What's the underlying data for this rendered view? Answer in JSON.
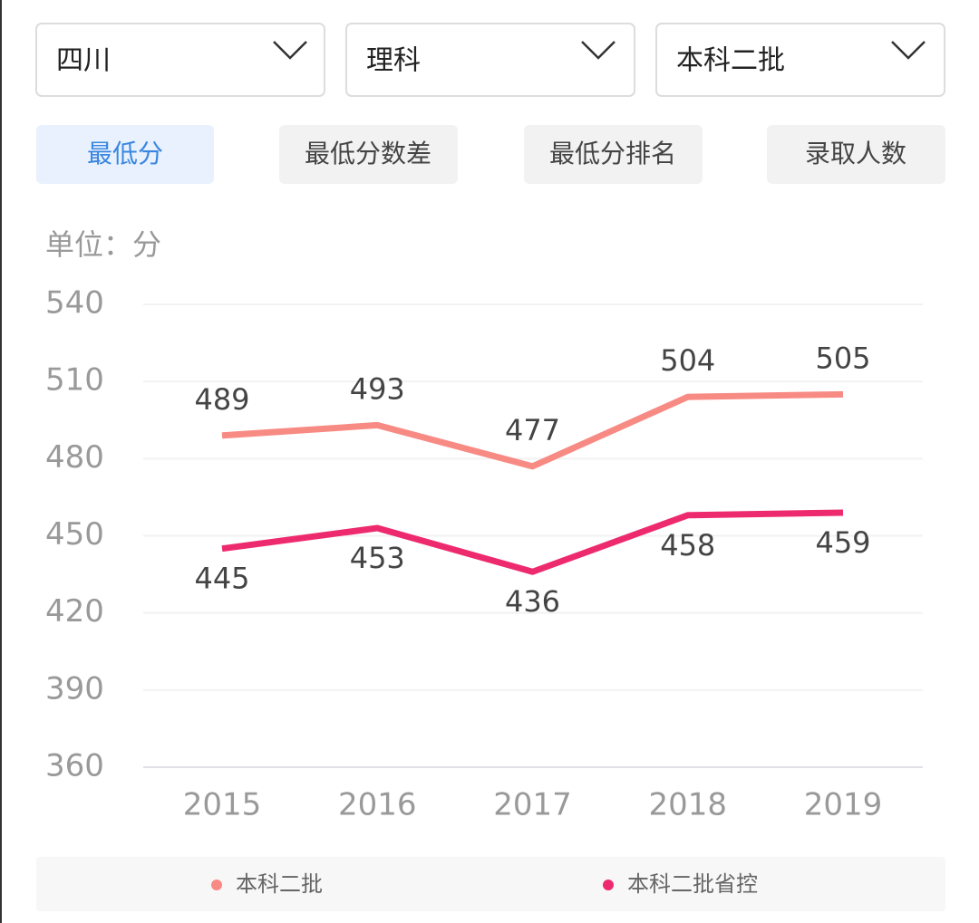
{
  "dropdowns": [
    "四川",
    "理科",
    "本科二批"
  ],
  "tabs": [
    "最低分",
    "最低分数差",
    "最低分排名",
    "录取人数"
  ],
  "chart_data": {
    "type": "line",
    "unit_label": "单位：分",
    "categories": [
      "2015",
      "2016",
      "2017",
      "2018",
      "2019"
    ],
    "series": [
      {
        "name": "本科二批",
        "color": "#f88a84",
        "values": [
          489,
          493,
          477,
          504,
          505
        ]
      },
      {
        "name": "本科二批省控",
        "color": "#ee2a6e",
        "values": [
          445,
          453,
          436,
          458,
          459
        ]
      }
    ],
    "ylim": [
      360,
      540
    ],
    "yticks": [
      360,
      390,
      420,
      450,
      480,
      510,
      540
    ],
    "grid": true
  }
}
